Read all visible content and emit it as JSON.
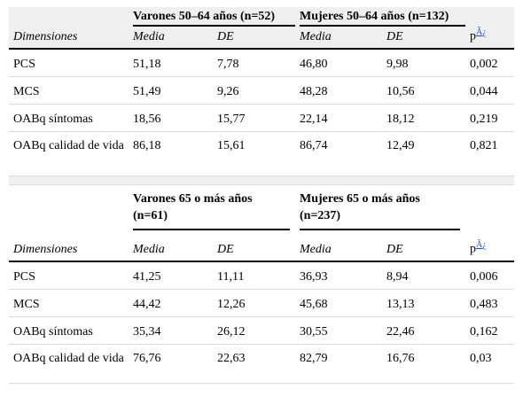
{
  "sections": [
    {
      "group_men": "Varones 50–64 años (n=52)",
      "group_women": "Mujeres 50–64 años (n=132)",
      "columns": {
        "dimension": "Dimensiones",
        "men_mean": "Media",
        "men_sd": "DE",
        "women_mean": "Media",
        "women_sd": "DE",
        "p": "p",
        "p_mark": "Â¿"
      },
      "rows": [
        {
          "dimension": "PCS",
          "men_mean": "51,18",
          "men_sd": "7,78",
          "women_mean": "46,80",
          "women_sd": "9,98",
          "p": "0,002"
        },
        {
          "dimension": "MCS",
          "men_mean": "51,49",
          "men_sd": "9,26",
          "women_mean": "48,28",
          "women_sd": "10,56",
          "p": "0,044"
        },
        {
          "dimension": "OABq síntomas",
          "men_mean": "18,56",
          "men_sd": "15,77",
          "women_mean": "22,14",
          "women_sd": "18,12",
          "p": "0,219"
        },
        {
          "dimension": "OABq calidad de vida",
          "men_mean": "86,18",
          "men_sd": "15,61",
          "women_mean": "86,74",
          "women_sd": "12,49",
          "p": "0,821"
        }
      ]
    },
    {
      "group_men": "Varones 65 o más años (n=61)",
      "group_women": "Mujeres 65 o más años (n=237)",
      "columns": {
        "dimension": "Dimensiones",
        "men_mean": "Media",
        "men_sd": "DE",
        "women_mean": "Media",
        "women_sd": "DE",
        "p": "p",
        "p_mark": "Â¿"
      },
      "rows": [
        {
          "dimension": "PCS",
          "men_mean": "41,25",
          "men_sd": "11,11",
          "women_mean": "36,93",
          "women_sd": "8,94",
          "p": "0,006"
        },
        {
          "dimension": "MCS",
          "men_mean": "44,42",
          "men_sd": "12,26",
          "women_mean": "45,68",
          "women_sd": "13,13",
          "p": "0,483"
        },
        {
          "dimension": "OABq síntomas",
          "men_mean": "35,34",
          "men_sd": "26,12",
          "women_mean": "30,55",
          "women_sd": "22,46",
          "p": "0,162"
        },
        {
          "dimension": "OABq calidad de vida",
          "men_mean": "76,76",
          "men_sd": "22,63",
          "women_mean": "82,79",
          "women_sd": "16,76",
          "p": "0,03"
        }
      ]
    }
  ]
}
